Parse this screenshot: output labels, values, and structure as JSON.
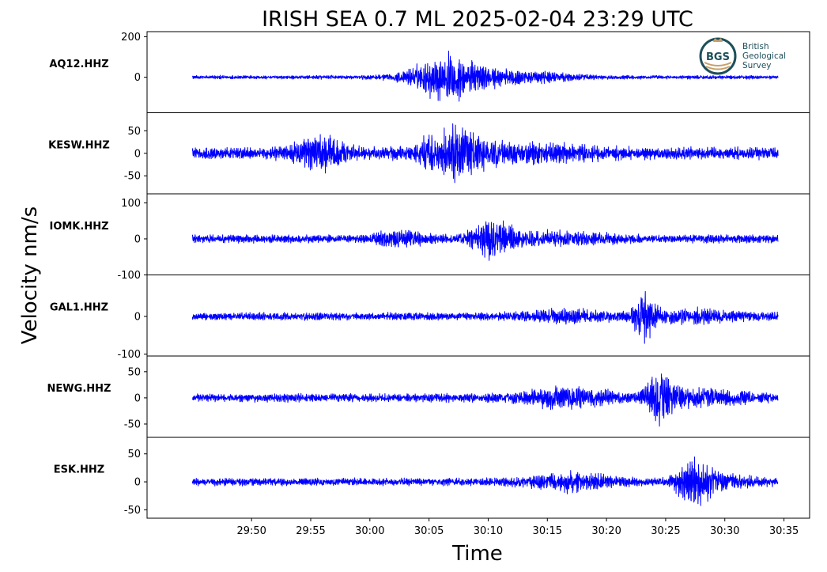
{
  "chart_data": {
    "type": "line",
    "title": "IRISH SEA 0.7 ML   2025-02-04 23:29 UTC",
    "xlabel": "Time",
    "ylabel": "Velocity nm/s",
    "x_ticks": [
      "29:50",
      "29:55",
      "30:00",
      "30:05",
      "30:10",
      "30:15",
      "30:20",
      "30:25",
      "30:30",
      "30:35"
    ],
    "x_tick_seconds": [
      -600,
      -300,
      0,
      300,
      600,
      900,
      1200,
      1500,
      1800,
      2100
    ],
    "xlim_seconds": [
      -1130,
      2230
    ],
    "trace_range_seconds": [
      -900,
      2070
    ],
    "line_color": "#0000ff",
    "grid": false,
    "logo": {
      "abbr": "BGS",
      "lines": [
        "British",
        "Geological",
        "Survey"
      ]
    },
    "panels": [
      {
        "station": "AQ12.HHZ",
        "yticks": [
          {
            "value": 200,
            "label": "200"
          },
          {
            "value": 0,
            "label": "0"
          }
        ],
        "ylim": [
          -175,
          225
        ],
        "noise": 8,
        "bursts": [
          {
            "center": 380,
            "width": 400,
            "amp": 75
          },
          {
            "center": 600,
            "width": 900,
            "amp": 35
          }
        ],
        "show_logo": true
      },
      {
        "station": "KESW.HHZ",
        "yticks": [
          {
            "value": 50,
            "label": "50"
          },
          {
            "value": 0,
            "label": "0"
          },
          {
            "value": -50,
            "label": "-50"
          }
        ],
        "ylim": [
          -90,
          90
        ],
        "noise": 12,
        "bursts": [
          {
            "center": -250,
            "width": 300,
            "amp": 30
          },
          {
            "center": 420,
            "width": 420,
            "amp": 38
          },
          {
            "center": 800,
            "width": 900,
            "amp": 10
          }
        ],
        "show_logo": false
      },
      {
        "station": "IOMK.HHZ",
        "yticks": [
          {
            "value": 100,
            "label": "100"
          },
          {
            "value": 0,
            "label": "0"
          },
          {
            "value": -100,
            "label": "-100"
          }
        ],
        "ylim": [
          -100,
          125
        ],
        "noise": 10,
        "bursts": [
          {
            "center": 150,
            "width": 300,
            "amp": 15
          },
          {
            "center": 620,
            "width": 260,
            "amp": 45
          },
          {
            "center": 950,
            "width": 700,
            "amp": 12
          }
        ],
        "show_logo": false
      },
      {
        "station": "GAL1.HHZ",
        "yticks": [
          {
            "value": 0,
            "label": "0"
          },
          {
            "value": -100,
            "label": "-100"
          }
        ],
        "ylim": [
          -105,
          110
        ],
        "noise": 9,
        "bursts": [
          {
            "center": 1000,
            "width": 600,
            "amp": 10
          },
          {
            "center": 1390,
            "width": 140,
            "amp": 48
          },
          {
            "center": 1650,
            "width": 600,
            "amp": 12
          }
        ],
        "show_logo": false
      },
      {
        "station": "NEWG.HHZ",
        "yticks": [
          {
            "value": 50,
            "label": "50"
          },
          {
            "value": 0,
            "label": "0"
          },
          {
            "value": -50,
            "label": "-50"
          }
        ],
        "ylim": [
          -75,
          80
        ],
        "noise": 7,
        "bursts": [
          {
            "center": 1000,
            "width": 600,
            "amp": 14
          },
          {
            "center": 1470,
            "width": 180,
            "amp": 38
          },
          {
            "center": 1700,
            "width": 500,
            "amp": 12
          }
        ],
        "show_logo": false
      },
      {
        "station": "ESK.HHZ",
        "yticks": [
          {
            "value": 50,
            "label": "50"
          },
          {
            "value": 0,
            "label": "0"
          },
          {
            "value": -50,
            "label": "-50"
          }
        ],
        "ylim": [
          -65,
          80
        ],
        "noise": 6,
        "bursts": [
          {
            "center": 1000,
            "width": 550,
            "amp": 12
          },
          {
            "center": 1640,
            "width": 220,
            "amp": 32
          },
          {
            "center": 1800,
            "width": 400,
            "amp": 10
          }
        ],
        "show_logo": false
      }
    ]
  }
}
